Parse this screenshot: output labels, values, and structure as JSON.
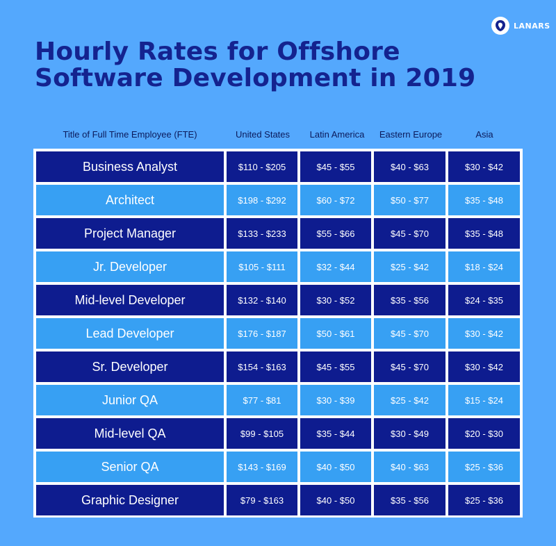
{
  "brand": {
    "name": "LANARS"
  },
  "title_lines": [
    "Hourly Rates for Offshore",
    "Software Development in 2019"
  ],
  "colors": {
    "background": "#54a8fd",
    "title": "#14238f",
    "row_dark": "#0e1c8f",
    "row_light": "#37a0f3"
  },
  "chart_data": {
    "type": "table",
    "title": "Hourly Rates for Offshore Software Development in 2019",
    "columns": [
      "Title of Full Time Employee (FTE)",
      "United States",
      "Latin America",
      "Eastern Europe",
      "Asia"
    ],
    "rows": [
      [
        "Business Analyst",
        "$110 - $205",
        "$45 - $55",
        "$40 - $63",
        "$30 - $42"
      ],
      [
        "Architect",
        "$198 - $292",
        "$60 - $72",
        "$50 - $77",
        "$35 - $48"
      ],
      [
        "Project Manager",
        "$133 - $233",
        "$55 - $66",
        "$45 - $70",
        "$35 - $48"
      ],
      [
        "Jr. Developer",
        "$105 - $111",
        "$32 - $44",
        "$25 - $42",
        "$18 - $24"
      ],
      [
        "Mid-level Developer",
        "$132 - $140",
        "$30 - $52",
        "$35 - $56",
        "$24 - $35"
      ],
      [
        "Lead Developer",
        "$176 - $187",
        "$50 - $61",
        "$45 - $70",
        "$30 - $42"
      ],
      [
        "Sr. Developer",
        "$154 - $163",
        "$45 - $55",
        "$45 - $70",
        "$30 - $42"
      ],
      [
        "Junior QA",
        "$77 - $81",
        "$30 - $39",
        "$25 - $42",
        "$15 - $24"
      ],
      [
        "Mid-level QA",
        "$99 - $105",
        "$35 - $44",
        "$30 - $49",
        "$20 - $30"
      ],
      [
        "Senior QA",
        "$143 - $169",
        "$40 - $50",
        "$40 - $63",
        "$25 - $36"
      ],
      [
        "Graphic Designer",
        "$79 - $163",
        "$40 - $50",
        "$35 - $56",
        "$25 - $36"
      ]
    ]
  }
}
